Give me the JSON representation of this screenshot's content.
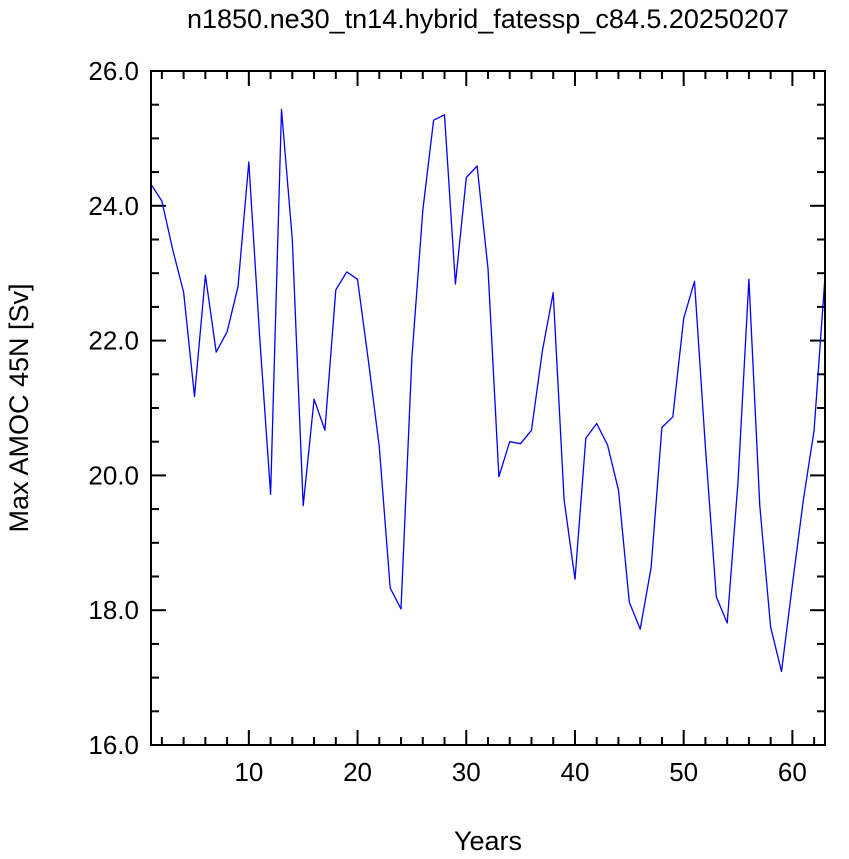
{
  "chart_data": {
    "type": "line",
    "title": "n1850.ne30_tn14.hybrid_fatessp_c84.5.20250207",
    "xlabel": "Years",
    "ylabel": "Max AMOC 45N [Sv]",
    "xlim": [
      1,
      63
    ],
    "ylim": [
      16.0,
      26.0
    ],
    "x_ticks": [
      10,
      20,
      30,
      40,
      50,
      60
    ],
    "y_ticks": [
      16.0,
      18.0,
      20.0,
      22.0,
      24.0,
      26.0
    ],
    "x_tick_labels": [
      "10",
      "20",
      "30",
      "40",
      "50",
      "60"
    ],
    "y_tick_labels": [
      "16.0",
      "18.0",
      "20.0",
      "22.0",
      "24.0",
      "26.0"
    ],
    "grid": false,
    "line_color": "#0000ff",
    "series": [
      {
        "x": [
          1,
          2,
          3,
          4,
          5,
          6,
          7,
          8,
          9,
          10,
          11,
          12,
          13,
          14,
          15,
          16,
          17,
          18,
          19,
          20,
          21,
          22,
          23,
          24,
          25,
          26,
          27,
          28,
          29,
          30,
          31,
          32,
          33,
          34,
          35,
          36,
          37,
          38,
          39,
          40,
          41,
          42,
          43,
          44,
          45,
          46,
          47,
          48,
          49,
          50,
          51,
          52,
          53,
          54,
          55,
          56,
          57,
          58,
          59,
          60,
          61,
          62,
          63
        ],
        "values": [
          24.32,
          24.07,
          23.35,
          22.72,
          21.17,
          22.97,
          21.83,
          22.13,
          22.8,
          24.65,
          22.05,
          19.72,
          25.43,
          23.5,
          19.55,
          21.13,
          20.67,
          22.75,
          23.02,
          22.91,
          21.7,
          20.42,
          18.33,
          18.02,
          21.75,
          23.93,
          25.27,
          25.35,
          22.84,
          24.42,
          24.59,
          23.07,
          19.98,
          20.5,
          20.47,
          20.67,
          21.85,
          22.71,
          19.64,
          18.46,
          20.55,
          20.77,
          20.45,
          19.78,
          18.12,
          17.72,
          18.63,
          20.71,
          20.87,
          22.33,
          22.88,
          20.42,
          18.2,
          17.81,
          19.9,
          22.91,
          19.55,
          17.75,
          17.09,
          18.38,
          19.63,
          20.67,
          22.95
        ]
      }
    ]
  }
}
